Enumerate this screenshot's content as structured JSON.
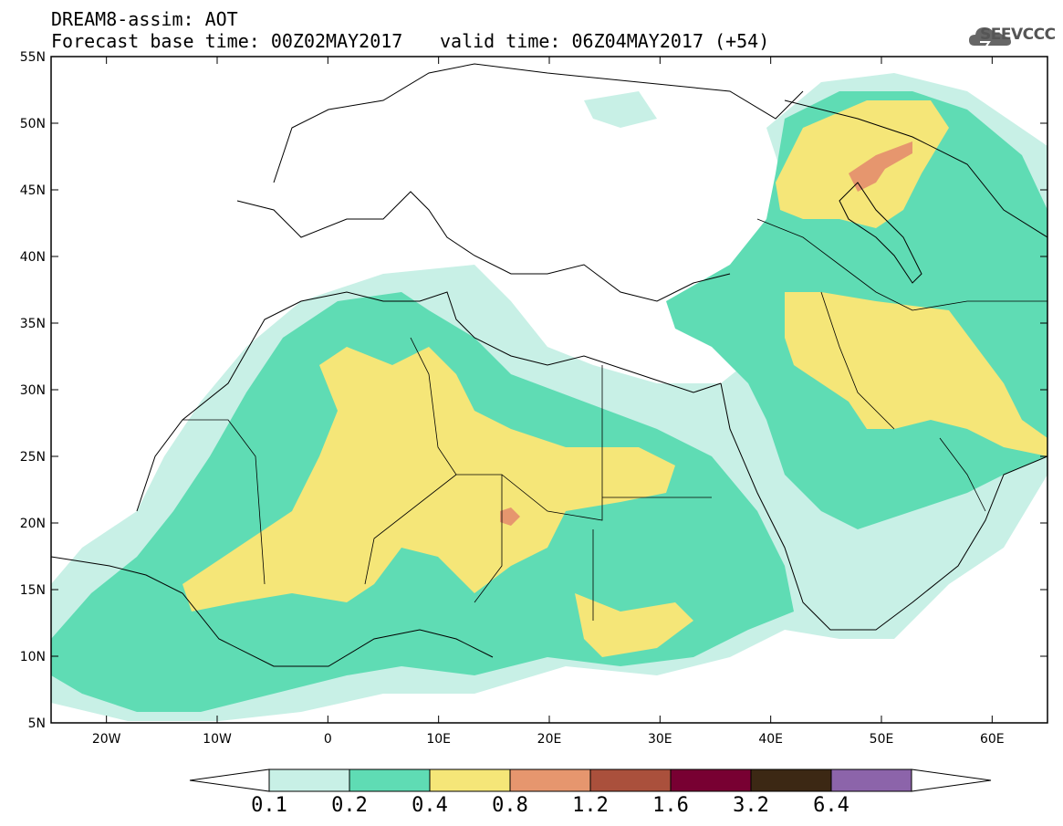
{
  "title": {
    "line1": "DREAM8-assim: AOT",
    "line2": "Forecast base time: 00Z02MAY2017",
    "valid": "valid time: 06Z04MAY2017 (+54)"
  },
  "logo": {
    "text": "SEEVCCC",
    "icon": "cloud-icon"
  },
  "axes": {
    "lat_labels": [
      "55N",
      "50N",
      "45N",
      "40N",
      "35N",
      "30N",
      "25N",
      "20N",
      "15N",
      "10N",
      "5N"
    ],
    "lon_labels": [
      "20W",
      "10W",
      "0",
      "10E",
      "20E",
      "30E",
      "40E",
      "50E",
      "60E"
    ],
    "lon_range": [
      -25,
      65
    ],
    "lat_range": [
      5,
      55
    ]
  },
  "colorbar": {
    "labels": [
      "0.1",
      "0.2",
      "0.4",
      "0.8",
      "1.2",
      "1.6",
      "3.2",
      "6.4"
    ],
    "colors": [
      "#ffffff",
      "#c8f0e6",
      "#5fdcb4",
      "#f5e678",
      "#e6966e",
      "#aa503c",
      "#780032",
      "#3c2814",
      "#8c64aa"
    ]
  },
  "chart_data": {
    "type": "heatmap",
    "variable": "AOT",
    "levels": [
      0.1,
      0.2,
      0.4,
      0.8,
      1.2,
      1.6,
      3.2,
      6.4
    ]
  }
}
